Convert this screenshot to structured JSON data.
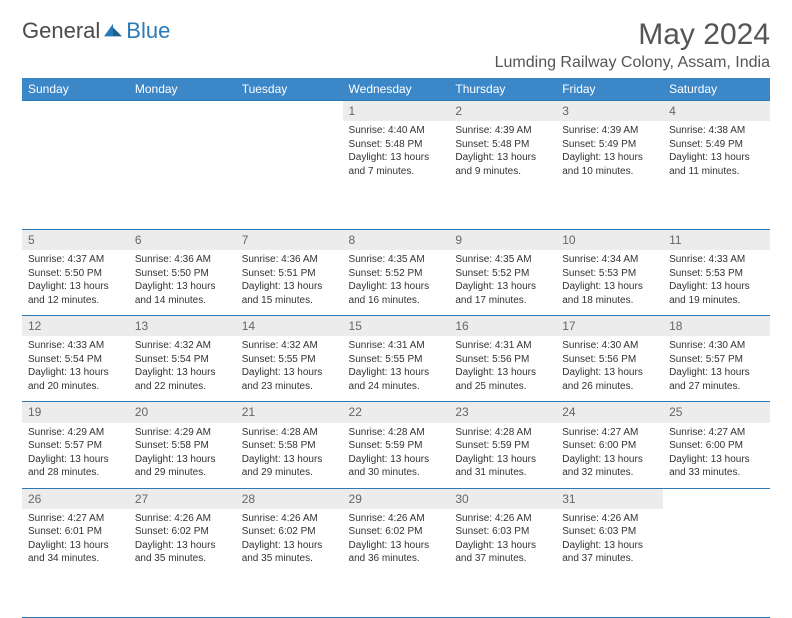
{
  "brand": {
    "name1": "General",
    "name2": "Blue"
  },
  "title": "May 2024",
  "location": "Lumding Railway Colony, Assam, India",
  "colors": {
    "header_bg": "#3b87c8",
    "rule": "#2a79b8",
    "daynum_bg": "#ececec",
    "text": "#333333",
    "muted": "#666666"
  },
  "dayNames": [
    "Sunday",
    "Monday",
    "Tuesday",
    "Wednesday",
    "Thursday",
    "Friday",
    "Saturday"
  ],
  "firstDayOffset": 3,
  "days": [
    {
      "n": 1,
      "sr": "4:40 AM",
      "ss": "5:48 PM",
      "dl": "13 hours and 7 minutes."
    },
    {
      "n": 2,
      "sr": "4:39 AM",
      "ss": "5:48 PM",
      "dl": "13 hours and 9 minutes."
    },
    {
      "n": 3,
      "sr": "4:39 AM",
      "ss": "5:49 PM",
      "dl": "13 hours and 10 minutes."
    },
    {
      "n": 4,
      "sr": "4:38 AM",
      "ss": "5:49 PM",
      "dl": "13 hours and 11 minutes."
    },
    {
      "n": 5,
      "sr": "4:37 AM",
      "ss": "5:50 PM",
      "dl": "13 hours and 12 minutes."
    },
    {
      "n": 6,
      "sr": "4:36 AM",
      "ss": "5:50 PM",
      "dl": "13 hours and 14 minutes."
    },
    {
      "n": 7,
      "sr": "4:36 AM",
      "ss": "5:51 PM",
      "dl": "13 hours and 15 minutes."
    },
    {
      "n": 8,
      "sr": "4:35 AM",
      "ss": "5:52 PM",
      "dl": "13 hours and 16 minutes."
    },
    {
      "n": 9,
      "sr": "4:35 AM",
      "ss": "5:52 PM",
      "dl": "13 hours and 17 minutes."
    },
    {
      "n": 10,
      "sr": "4:34 AM",
      "ss": "5:53 PM",
      "dl": "13 hours and 18 minutes."
    },
    {
      "n": 11,
      "sr": "4:33 AM",
      "ss": "5:53 PM",
      "dl": "13 hours and 19 minutes."
    },
    {
      "n": 12,
      "sr": "4:33 AM",
      "ss": "5:54 PM",
      "dl": "13 hours and 20 minutes."
    },
    {
      "n": 13,
      "sr": "4:32 AM",
      "ss": "5:54 PM",
      "dl": "13 hours and 22 minutes."
    },
    {
      "n": 14,
      "sr": "4:32 AM",
      "ss": "5:55 PM",
      "dl": "13 hours and 23 minutes."
    },
    {
      "n": 15,
      "sr": "4:31 AM",
      "ss": "5:55 PM",
      "dl": "13 hours and 24 minutes."
    },
    {
      "n": 16,
      "sr": "4:31 AM",
      "ss": "5:56 PM",
      "dl": "13 hours and 25 minutes."
    },
    {
      "n": 17,
      "sr": "4:30 AM",
      "ss": "5:56 PM",
      "dl": "13 hours and 26 minutes."
    },
    {
      "n": 18,
      "sr": "4:30 AM",
      "ss": "5:57 PM",
      "dl": "13 hours and 27 minutes."
    },
    {
      "n": 19,
      "sr": "4:29 AM",
      "ss": "5:57 PM",
      "dl": "13 hours and 28 minutes."
    },
    {
      "n": 20,
      "sr": "4:29 AM",
      "ss": "5:58 PM",
      "dl": "13 hours and 29 minutes."
    },
    {
      "n": 21,
      "sr": "4:28 AM",
      "ss": "5:58 PM",
      "dl": "13 hours and 29 minutes."
    },
    {
      "n": 22,
      "sr": "4:28 AM",
      "ss": "5:59 PM",
      "dl": "13 hours and 30 minutes."
    },
    {
      "n": 23,
      "sr": "4:28 AM",
      "ss": "5:59 PM",
      "dl": "13 hours and 31 minutes."
    },
    {
      "n": 24,
      "sr": "4:27 AM",
      "ss": "6:00 PM",
      "dl": "13 hours and 32 minutes."
    },
    {
      "n": 25,
      "sr": "4:27 AM",
      "ss": "6:00 PM",
      "dl": "13 hours and 33 minutes."
    },
    {
      "n": 26,
      "sr": "4:27 AM",
      "ss": "6:01 PM",
      "dl": "13 hours and 34 minutes."
    },
    {
      "n": 27,
      "sr": "4:26 AM",
      "ss": "6:02 PM",
      "dl": "13 hours and 35 minutes."
    },
    {
      "n": 28,
      "sr": "4:26 AM",
      "ss": "6:02 PM",
      "dl": "13 hours and 35 minutes."
    },
    {
      "n": 29,
      "sr": "4:26 AM",
      "ss": "6:02 PM",
      "dl": "13 hours and 36 minutes."
    },
    {
      "n": 30,
      "sr": "4:26 AM",
      "ss": "6:03 PM",
      "dl": "13 hours and 37 minutes."
    },
    {
      "n": 31,
      "sr": "4:26 AM",
      "ss": "6:03 PM",
      "dl": "13 hours and 37 minutes."
    }
  ],
  "labels": {
    "sunrise": "Sunrise: ",
    "sunset": "Sunset: ",
    "daylight": "Daylight: "
  }
}
